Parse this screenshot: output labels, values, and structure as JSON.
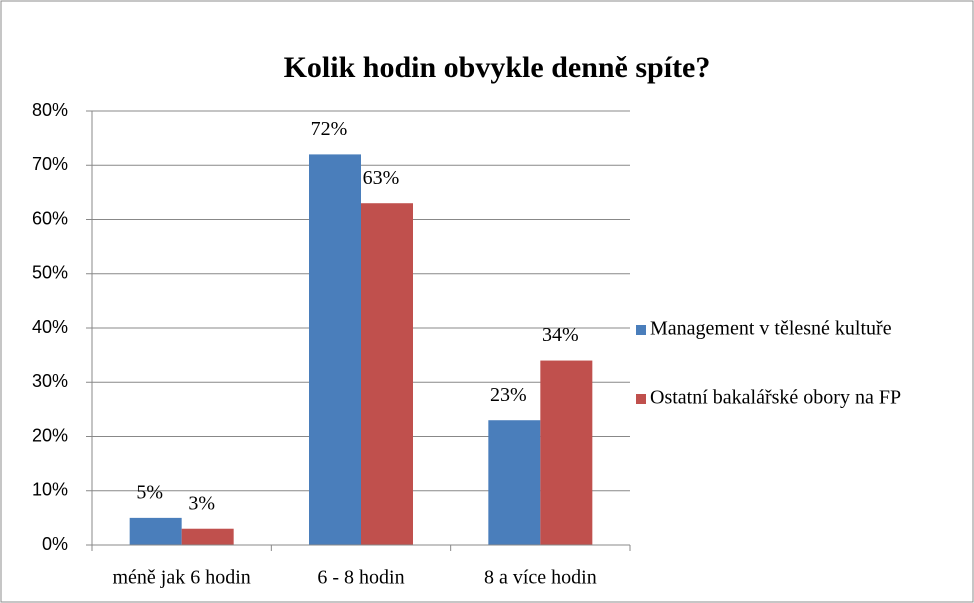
{
  "chart_data": {
    "type": "bar",
    "title": "Kolik hodin obvykle denně spíte?",
    "categories": [
      "méně jak 6 hodin",
      "6 - 8 hodin",
      "8 a více hodin"
    ],
    "series": [
      {
        "name": "Management v tělesné kultuře",
        "color": "#4a7ebb",
        "values": [
          5,
          72,
          23
        ],
        "value_labels": [
          "5%",
          "72%",
          "23%"
        ]
      },
      {
        "name": "Ostatní bakalářské obory na FP",
        "color": "#c0504d",
        "values": [
          3,
          63,
          34
        ],
        "value_labels": [
          "3%",
          "63%",
          "34%"
        ]
      }
    ],
    "ylim": [
      0,
      80
    ],
    "yticks": [
      {
        "value": 0,
        "label": "0%"
      },
      {
        "value": 10,
        "label": "10%"
      },
      {
        "value": 20,
        "label": "20%"
      },
      {
        "value": 30,
        "label": "30%"
      },
      {
        "value": 40,
        "label": "40%"
      },
      {
        "value": 50,
        "label": "50%"
      },
      {
        "value": 60,
        "label": "60%"
      },
      {
        "value": 70,
        "label": "70%"
      },
      {
        "value": 80,
        "label": "80%"
      }
    ],
    "grid": true,
    "legend": "right"
  }
}
